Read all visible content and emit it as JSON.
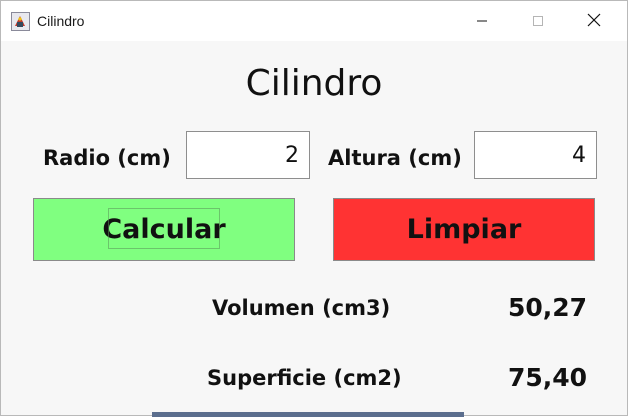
{
  "window": {
    "title": "Cilindro",
    "app_icon": "java-app-icon",
    "controls": [
      "minimize-icon",
      "maximize-icon",
      "close-icon"
    ]
  },
  "form": {
    "heading": "Cilindro",
    "radio_label": "Radio (cm)",
    "radio_value": "2",
    "altura_label": "Altura (cm)",
    "altura_value": "4"
  },
  "buttons": {
    "calcular_label": "Calcular",
    "calcular_color": "#80ff80",
    "limpiar_label": "Limpiar",
    "limpiar_color": "#ff3333"
  },
  "results": {
    "volumen_label": "Volumen (cm3)",
    "volumen_value": "50,27",
    "superficie_label": "Superficie (cm2)",
    "superficie_value": "75,40"
  }
}
